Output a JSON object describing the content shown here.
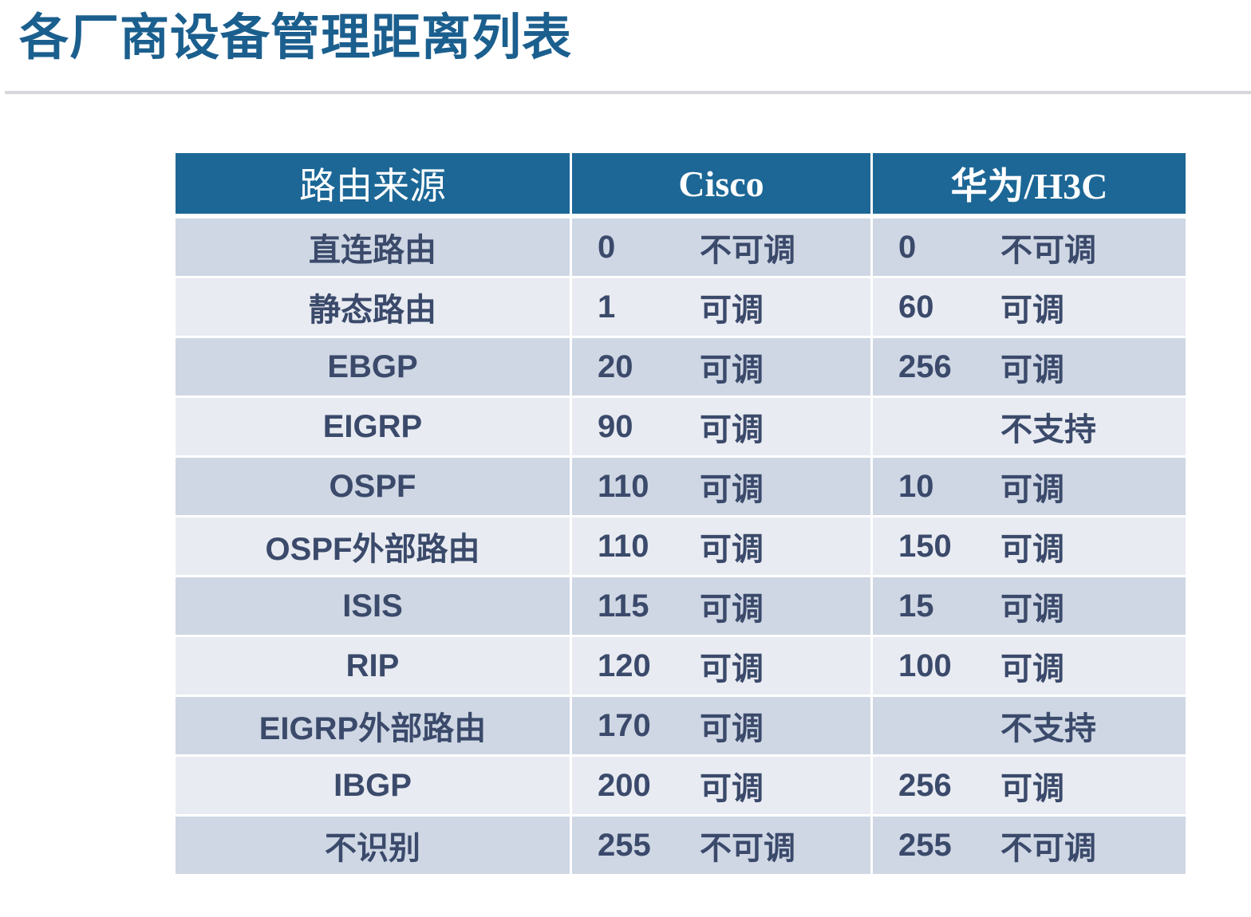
{
  "title": "各厂商设备管理距离列表",
  "table": {
    "headers": [
      "路由来源",
      "Cisco",
      "华为/H3C"
    ],
    "rows": [
      {
        "source": "直连路由",
        "cisco_value": "0",
        "cisco_adj": "不可调",
        "huawei_value": "0",
        "huawei_adj": "不可调"
      },
      {
        "source": "静态路由",
        "cisco_value": "1",
        "cisco_adj": "可调",
        "huawei_value": "60",
        "huawei_adj": "可调"
      },
      {
        "source": "EBGP",
        "cisco_value": "20",
        "cisco_adj": "可调",
        "huawei_value": "256",
        "huawei_adj": "可调"
      },
      {
        "source": "EIGRP",
        "cisco_value": "90",
        "cisco_adj": "可调",
        "huawei_value": "",
        "huawei_adj": "不支持"
      },
      {
        "source": "OSPF",
        "cisco_value": "110",
        "cisco_adj": "可调",
        "huawei_value": "10",
        "huawei_adj": "可调"
      },
      {
        "source": "OSPF外部路由",
        "cisco_value": "110",
        "cisco_adj": "可调",
        "huawei_value": "150",
        "huawei_adj": "可调"
      },
      {
        "source": "ISIS",
        "cisco_value": "115",
        "cisco_adj": "可调",
        "huawei_value": "15",
        "huawei_adj": "可调"
      },
      {
        "source": "RIP",
        "cisco_value": "120",
        "cisco_adj": "可调",
        "huawei_value": "100",
        "huawei_adj": "可调"
      },
      {
        "source": "EIGRP外部路由",
        "cisco_value": "170",
        "cisco_adj": "可调",
        "huawei_value": "",
        "huawei_adj": "不支持"
      },
      {
        "source": "IBGP",
        "cisco_value": "200",
        "cisco_adj": "可调",
        "huawei_value": "256",
        "huawei_adj": "可调"
      },
      {
        "source": "不识别",
        "cisco_value": "255",
        "cisco_adj": "不可调",
        "huawei_value": "255",
        "huawei_adj": "不可调"
      }
    ]
  }
}
